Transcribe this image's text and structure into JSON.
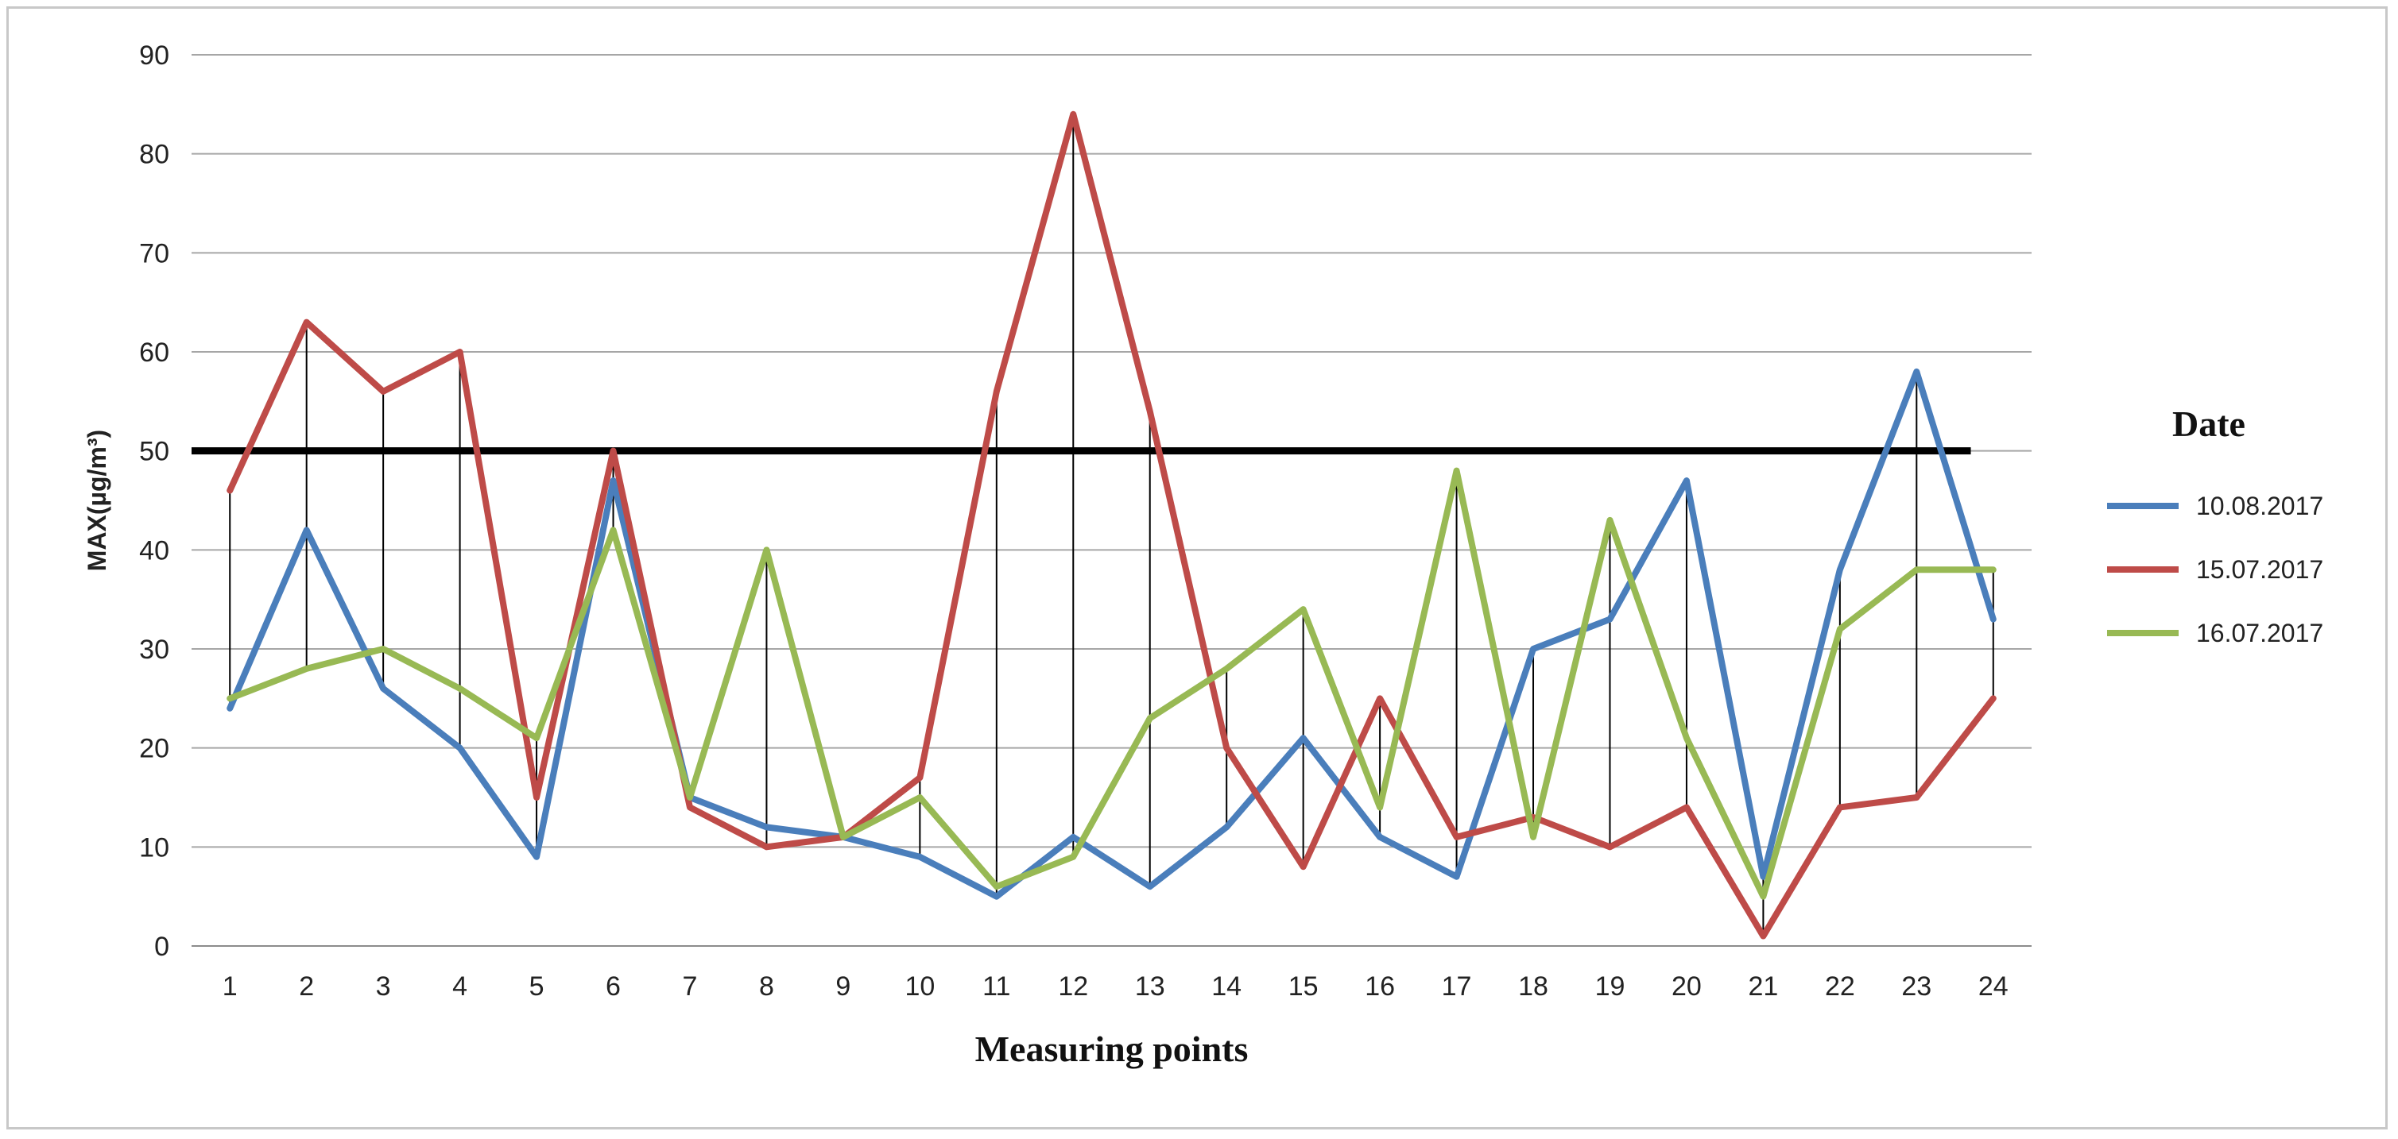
{
  "chart_data": {
    "type": "line",
    "title": "",
    "xlabel": "Measuring points",
    "ylabel": "MAX(µg/m³)",
    "ylim": [
      0,
      90
    ],
    "yticks": [
      0,
      10,
      20,
      30,
      40,
      50,
      60,
      70,
      80,
      90
    ],
    "categories": [
      "1",
      "2",
      "3",
      "4",
      "5",
      "6",
      "7",
      "8",
      "9",
      "10",
      "11",
      "12",
      "13",
      "14",
      "15",
      "16",
      "17",
      "18",
      "19",
      "20",
      "21",
      "22",
      "23",
      "24"
    ],
    "grid": true,
    "legend": {
      "title": "Date",
      "placement": "right"
    },
    "reference_line": {
      "value": 50,
      "color": "#000000"
    },
    "drop_lines": true,
    "series": [
      {
        "name": "10.08.2017",
        "color": "#4a7ebb",
        "values": [
          24,
          42,
          26,
          20,
          9,
          47,
          15,
          12,
          11,
          9,
          5,
          11,
          6,
          12,
          21,
          11,
          7,
          30,
          33,
          47,
          7,
          38,
          58,
          33
        ]
      },
      {
        "name": "15.07.2017",
        "color": "#be4b48",
        "values": [
          46,
          63,
          56,
          60,
          15,
          50,
          14,
          10,
          11,
          17,
          56,
          84,
          54,
          20,
          8,
          25,
          11,
          13,
          10,
          14,
          1,
          14,
          15,
          25
        ]
      },
      {
        "name": "16.07.2017",
        "color": "#98b954",
        "values": [
          25,
          28,
          30,
          26,
          21,
          42,
          15,
          40,
          11,
          15,
          6,
          9,
          23,
          28,
          34,
          14,
          48,
          11,
          43,
          21,
          5,
          32,
          38,
          38
        ]
      }
    ]
  }
}
